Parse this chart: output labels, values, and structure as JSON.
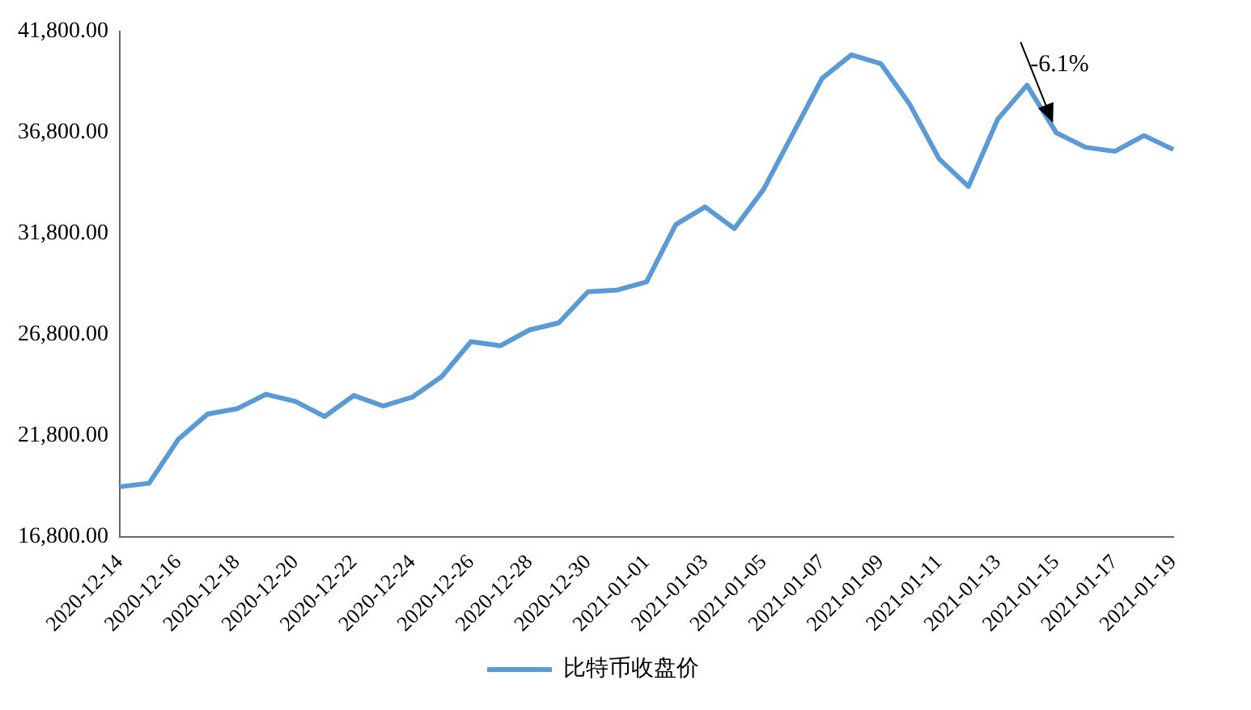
{
  "chart_data": {
    "type": "line",
    "categories": [
      "2020-12-14",
      null,
      "2020-12-16",
      null,
      "2020-12-18",
      null,
      "2020-12-20",
      null,
      "2020-12-22",
      null,
      "2020-12-24",
      null,
      "2020-12-26",
      null,
      "2020-12-28",
      null,
      "2020-12-30",
      null,
      "2021-01-01",
      null,
      "2021-01-03",
      null,
      "2021-01-05",
      null,
      "2021-01-07",
      null,
      "2021-01-09",
      null,
      "2021-01-11",
      null,
      "2021-01-13",
      null,
      "2021-01-15",
      null,
      "2021-01-17",
      null,
      "2021-01-19"
    ],
    "series": [
      {
        "name": "比特币收盘价",
        "color": "#5b9bd5",
        "values": [
          19290,
          19460,
          21630,
          22880,
          23140,
          23860,
          23510,
          22760,
          23800,
          23280,
          23720,
          24730,
          26460,
          26260,
          27040,
          27390,
          28930,
          29010,
          29410,
          32250,
          33120,
          32050,
          33990,
          36740,
          39480,
          40640,
          40210,
          38180,
          35490,
          34130,
          37460,
          39140,
          36790,
          36070,
          35870,
          36650,
          35960
        ]
      }
    ],
    "ylim": [
      16800,
      41800
    ],
    "yticks": [
      {
        "value": 16800,
        "label": "16,800.00"
      },
      {
        "value": 21800,
        "label": "21,800.00"
      },
      {
        "value": 26800,
        "label": "26,800.00"
      },
      {
        "value": 31800,
        "label": "31,800.00"
      },
      {
        "value": 36800,
        "label": "36,800.00"
      },
      {
        "value": 41800,
        "label": "41,800.00"
      }
    ],
    "annotations": [
      {
        "text": "-6.1%",
        "x": "2021-01-15",
        "y": 36790
      }
    ],
    "legend": "bottom",
    "marker": "none",
    "line_style": "solid"
  }
}
